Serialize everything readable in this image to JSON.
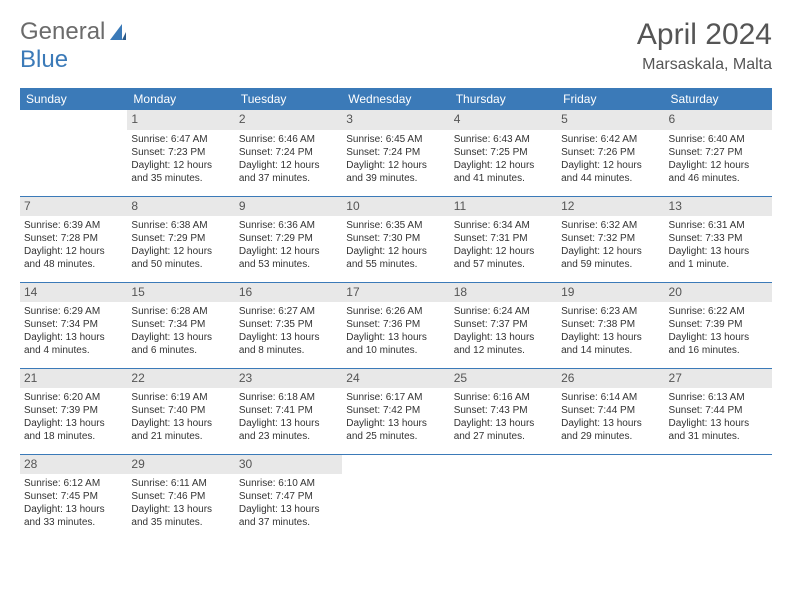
{
  "colors": {
    "accent": "#3b7ab8",
    "daynum_bg": "#e8e8e8",
    "text": "#333333",
    "muted": "#555555"
  },
  "logo": {
    "part1": "General",
    "part2": "Blue"
  },
  "title": "April 2024",
  "location": "Marsaskala, Malta",
  "weekdays": [
    "Sunday",
    "Monday",
    "Tuesday",
    "Wednesday",
    "Thursday",
    "Friday",
    "Saturday"
  ],
  "weeks": [
    [
      {
        "blank": true
      },
      {
        "n": "1",
        "sr": "Sunrise: 6:47 AM",
        "ss": "Sunset: 7:23 PM",
        "d1": "Daylight: 12 hours",
        "d2": "and 35 minutes."
      },
      {
        "n": "2",
        "sr": "Sunrise: 6:46 AM",
        "ss": "Sunset: 7:24 PM",
        "d1": "Daylight: 12 hours",
        "d2": "and 37 minutes."
      },
      {
        "n": "3",
        "sr": "Sunrise: 6:45 AM",
        "ss": "Sunset: 7:24 PM",
        "d1": "Daylight: 12 hours",
        "d2": "and 39 minutes."
      },
      {
        "n": "4",
        "sr": "Sunrise: 6:43 AM",
        "ss": "Sunset: 7:25 PM",
        "d1": "Daylight: 12 hours",
        "d2": "and 41 minutes."
      },
      {
        "n": "5",
        "sr": "Sunrise: 6:42 AM",
        "ss": "Sunset: 7:26 PM",
        "d1": "Daylight: 12 hours",
        "d2": "and 44 minutes."
      },
      {
        "n": "6",
        "sr": "Sunrise: 6:40 AM",
        "ss": "Sunset: 7:27 PM",
        "d1": "Daylight: 12 hours",
        "d2": "and 46 minutes."
      }
    ],
    [
      {
        "n": "7",
        "sr": "Sunrise: 6:39 AM",
        "ss": "Sunset: 7:28 PM",
        "d1": "Daylight: 12 hours",
        "d2": "and 48 minutes."
      },
      {
        "n": "8",
        "sr": "Sunrise: 6:38 AM",
        "ss": "Sunset: 7:29 PM",
        "d1": "Daylight: 12 hours",
        "d2": "and 50 minutes."
      },
      {
        "n": "9",
        "sr": "Sunrise: 6:36 AM",
        "ss": "Sunset: 7:29 PM",
        "d1": "Daylight: 12 hours",
        "d2": "and 53 minutes."
      },
      {
        "n": "10",
        "sr": "Sunrise: 6:35 AM",
        "ss": "Sunset: 7:30 PM",
        "d1": "Daylight: 12 hours",
        "d2": "and 55 minutes."
      },
      {
        "n": "11",
        "sr": "Sunrise: 6:34 AM",
        "ss": "Sunset: 7:31 PM",
        "d1": "Daylight: 12 hours",
        "d2": "and 57 minutes."
      },
      {
        "n": "12",
        "sr": "Sunrise: 6:32 AM",
        "ss": "Sunset: 7:32 PM",
        "d1": "Daylight: 12 hours",
        "d2": "and 59 minutes."
      },
      {
        "n": "13",
        "sr": "Sunrise: 6:31 AM",
        "ss": "Sunset: 7:33 PM",
        "d1": "Daylight: 13 hours",
        "d2": "and 1 minute."
      }
    ],
    [
      {
        "n": "14",
        "sr": "Sunrise: 6:29 AM",
        "ss": "Sunset: 7:34 PM",
        "d1": "Daylight: 13 hours",
        "d2": "and 4 minutes."
      },
      {
        "n": "15",
        "sr": "Sunrise: 6:28 AM",
        "ss": "Sunset: 7:34 PM",
        "d1": "Daylight: 13 hours",
        "d2": "and 6 minutes."
      },
      {
        "n": "16",
        "sr": "Sunrise: 6:27 AM",
        "ss": "Sunset: 7:35 PM",
        "d1": "Daylight: 13 hours",
        "d2": "and 8 minutes."
      },
      {
        "n": "17",
        "sr": "Sunrise: 6:26 AM",
        "ss": "Sunset: 7:36 PM",
        "d1": "Daylight: 13 hours",
        "d2": "and 10 minutes."
      },
      {
        "n": "18",
        "sr": "Sunrise: 6:24 AM",
        "ss": "Sunset: 7:37 PM",
        "d1": "Daylight: 13 hours",
        "d2": "and 12 minutes."
      },
      {
        "n": "19",
        "sr": "Sunrise: 6:23 AM",
        "ss": "Sunset: 7:38 PM",
        "d1": "Daylight: 13 hours",
        "d2": "and 14 minutes."
      },
      {
        "n": "20",
        "sr": "Sunrise: 6:22 AM",
        "ss": "Sunset: 7:39 PM",
        "d1": "Daylight: 13 hours",
        "d2": "and 16 minutes."
      }
    ],
    [
      {
        "n": "21",
        "sr": "Sunrise: 6:20 AM",
        "ss": "Sunset: 7:39 PM",
        "d1": "Daylight: 13 hours",
        "d2": "and 18 minutes."
      },
      {
        "n": "22",
        "sr": "Sunrise: 6:19 AM",
        "ss": "Sunset: 7:40 PM",
        "d1": "Daylight: 13 hours",
        "d2": "and 21 minutes."
      },
      {
        "n": "23",
        "sr": "Sunrise: 6:18 AM",
        "ss": "Sunset: 7:41 PM",
        "d1": "Daylight: 13 hours",
        "d2": "and 23 minutes."
      },
      {
        "n": "24",
        "sr": "Sunrise: 6:17 AM",
        "ss": "Sunset: 7:42 PM",
        "d1": "Daylight: 13 hours",
        "d2": "and 25 minutes."
      },
      {
        "n": "25",
        "sr": "Sunrise: 6:16 AM",
        "ss": "Sunset: 7:43 PM",
        "d1": "Daylight: 13 hours",
        "d2": "and 27 minutes."
      },
      {
        "n": "26",
        "sr": "Sunrise: 6:14 AM",
        "ss": "Sunset: 7:44 PM",
        "d1": "Daylight: 13 hours",
        "d2": "and 29 minutes."
      },
      {
        "n": "27",
        "sr": "Sunrise: 6:13 AM",
        "ss": "Sunset: 7:44 PM",
        "d1": "Daylight: 13 hours",
        "d2": "and 31 minutes."
      }
    ],
    [
      {
        "n": "28",
        "sr": "Sunrise: 6:12 AM",
        "ss": "Sunset: 7:45 PM",
        "d1": "Daylight: 13 hours",
        "d2": "and 33 minutes."
      },
      {
        "n": "29",
        "sr": "Sunrise: 6:11 AM",
        "ss": "Sunset: 7:46 PM",
        "d1": "Daylight: 13 hours",
        "d2": "and 35 minutes."
      },
      {
        "n": "30",
        "sr": "Sunrise: 6:10 AM",
        "ss": "Sunset: 7:47 PM",
        "d1": "Daylight: 13 hours",
        "d2": "and 37 minutes."
      },
      {
        "blank": true
      },
      {
        "blank": true
      },
      {
        "blank": true
      },
      {
        "blank": true
      }
    ]
  ]
}
